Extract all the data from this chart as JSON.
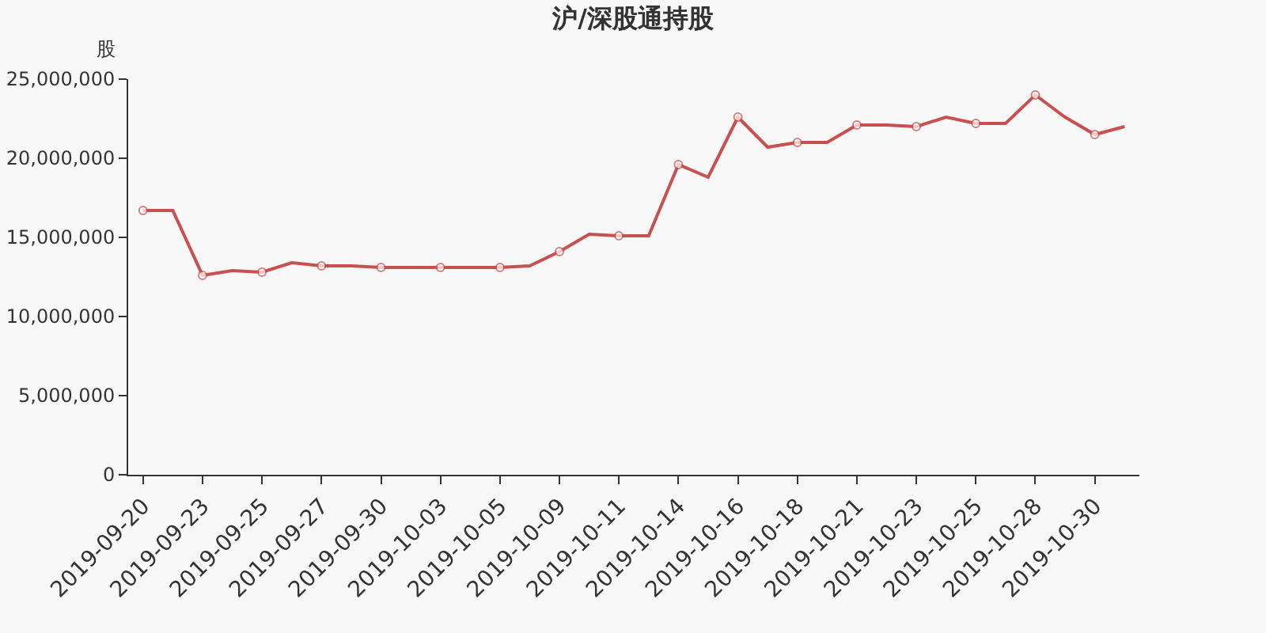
{
  "chart_data": {
    "type": "line",
    "title": "沪/深股通持股",
    "ylabel": "股",
    "categories": [
      "2019-09-20",
      null,
      "2019-09-23",
      null,
      "2019-09-25",
      null,
      "2019-09-27",
      null,
      "2019-09-30",
      null,
      "2019-10-03",
      null,
      "2019-10-05",
      null,
      "2019-10-09",
      null,
      "2019-10-11",
      null,
      "2019-10-14",
      null,
      "2019-10-16",
      null,
      "2019-10-18",
      null,
      "2019-10-21",
      null,
      "2019-10-23",
      null,
      "2019-10-25",
      null,
      "2019-10-28",
      null,
      "2019-10-30",
      null
    ],
    "series": [
      {
        "color": "#c8504f",
        "values": [
          16700000,
          16700000,
          12600000,
          12900000,
          12800000,
          13400000,
          13200000,
          13200000,
          13100000,
          13100000,
          13100000,
          13100000,
          13100000,
          13200000,
          14100000,
          15200000,
          15100000,
          15100000,
          19600000,
          18800000,
          22600000,
          20700000,
          21000000,
          21000000,
          22100000,
          22100000,
          22000000,
          22600000,
          22200000,
          22200000,
          24000000,
          22600000,
          21500000,
          22000000
        ]
      }
    ],
    "ylim": [
      0,
      25000000
    ],
    "yticks": [
      {
        "value": 0,
        "label": "0"
      },
      {
        "value": 5000000,
        "label": "5,000,000"
      },
      {
        "value": 10000000,
        "label": "10,000,000"
      },
      {
        "value": 15000000,
        "label": "15,000,000"
      },
      {
        "value": 20000000,
        "label": "20,000,000"
      },
      {
        "value": 25000000,
        "label": "25,000,000"
      }
    ],
    "grid": false,
    "marker": "circle",
    "line_style": "solid"
  }
}
